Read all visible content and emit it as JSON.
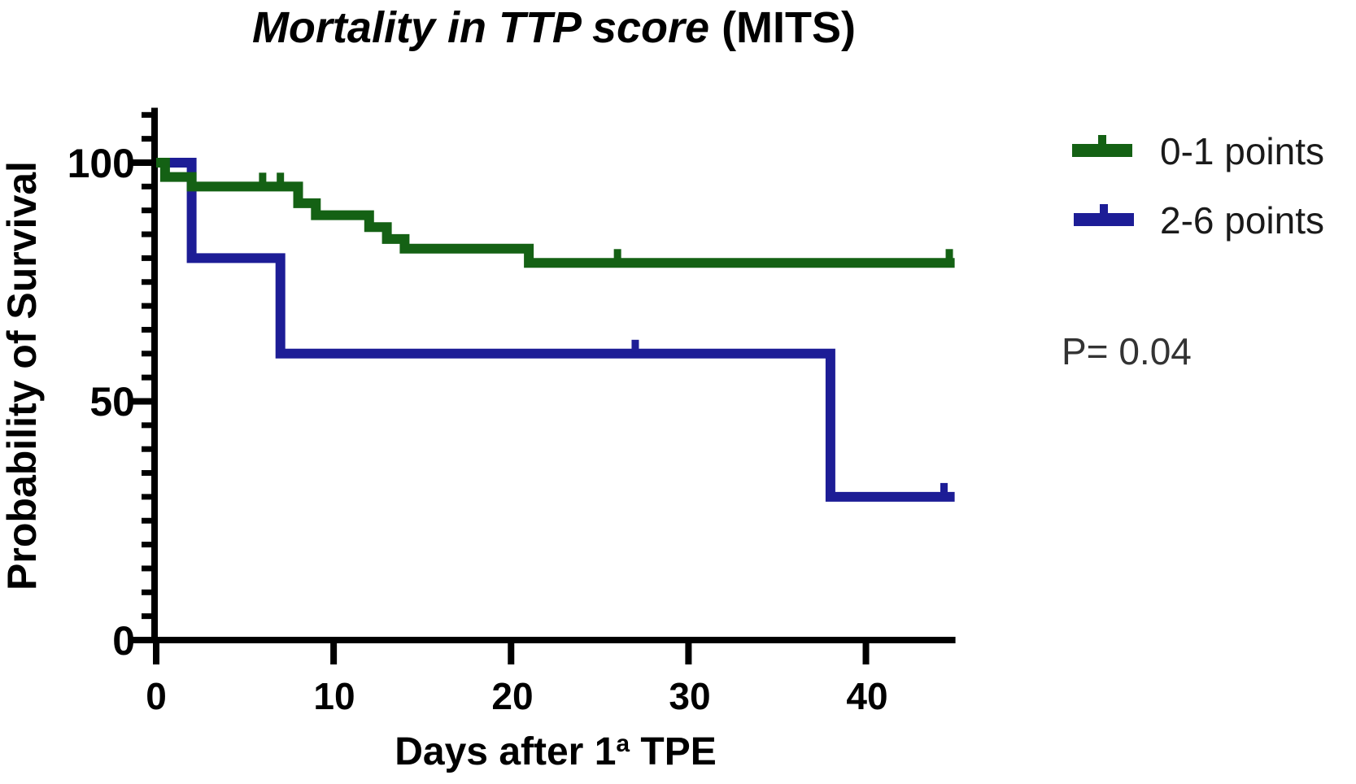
{
  "title": {
    "italic_part": "Mortality in TTP score",
    "regular_part": " (MITS)"
  },
  "y_axis": {
    "label": "Probability of Survival",
    "ticks": [
      0,
      50,
      100
    ],
    "minor_tick_step": 5,
    "max_shown": 110
  },
  "x_axis": {
    "label_prefix": "Days after 1",
    "label_sup": "a",
    "label_suffix": " TPE",
    "ticks": [
      0,
      10,
      20,
      30,
      40
    ]
  },
  "legend": [
    {
      "label": "0-1 points",
      "color": "#146114"
    },
    {
      "label": "2-6 points",
      "color": "#1d1d96"
    }
  ],
  "annotation": {
    "p_value": "P= 0.04"
  },
  "chart_data": {
    "type": "line",
    "subtype": "kaplan-meier-step",
    "title": "Mortality in TTP score (MITS)",
    "xlabel": "Days after 1ª TPE",
    "ylabel": "Probability of Survival",
    "xlim": [
      0,
      45
    ],
    "ylim": [
      0,
      110
    ],
    "grid": false,
    "legend_position": "right",
    "p_value": "P= 0.04",
    "series": [
      {
        "name": "0-1 points",
        "color": "#146114",
        "points": [
          [
            0,
            100
          ],
          [
            0.5,
            97
          ],
          [
            2,
            95
          ],
          [
            8,
            91.5
          ],
          [
            9,
            89
          ],
          [
            12,
            86.5
          ],
          [
            13,
            84
          ],
          [
            14,
            82
          ],
          [
            21,
            79
          ],
          [
            45,
            79
          ]
        ],
        "censor_marks": [
          [
            6,
            95
          ],
          [
            7,
            95
          ],
          [
            26,
            79
          ],
          [
            44.7,
            79
          ]
        ]
      },
      {
        "name": "2-6 points",
        "color": "#1d1d96",
        "points": [
          [
            0,
            100
          ],
          [
            2,
            80
          ],
          [
            7,
            60
          ],
          [
            38,
            30
          ],
          [
            45,
            30
          ]
        ],
        "censor_marks": [
          [
            27,
            60
          ],
          [
            44.4,
            30
          ]
        ]
      }
    ]
  }
}
